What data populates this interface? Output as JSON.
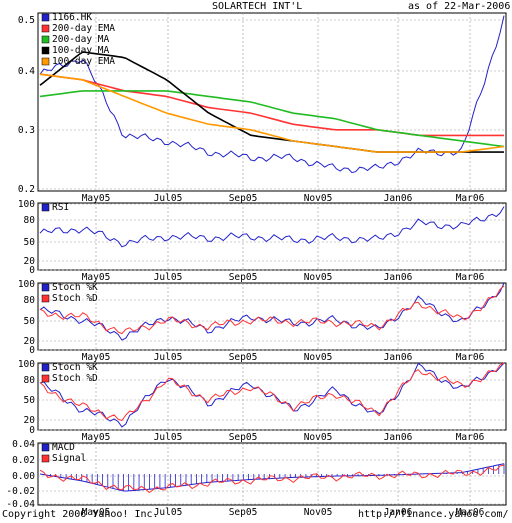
{
  "header": {
    "title": "SOLARTECH INT'L",
    "as_of": "as of 22-Mar-2006"
  },
  "footer": {
    "copyright": "Copyright 2006 Yahoo! Inc.",
    "url": "http://finance.yahoo.com/"
  },
  "colors": {
    "price": "#2222cc",
    "ema200": "#ff3333",
    "ma200": "#22bb22",
    "ma100": "#000000",
    "ema100": "#ff9900",
    "indicator": "#2222cc",
    "signal": "#ff3333",
    "grid": "#999999"
  },
  "chart_data": [
    {
      "type": "line",
      "panel": "price",
      "x_ticks": [
        "May05",
        "Jul05",
        "Sep05",
        "Nov05",
        "Jan06",
        "Mar06"
      ],
      "y_ticks": [
        "0.5",
        "0.4",
        "0.3",
        "0.2"
      ],
      "ylim": [
        0.19,
        0.51
      ],
      "x": [
        "2005-04",
        "2005-05",
        "2005-06",
        "2005-07",
        "2005-08",
        "2005-09",
        "2005-10",
        "2005-11",
        "2005-12",
        "2006-01",
        "2006-02",
        "2006-03-22"
      ],
      "series": [
        {
          "name": "1166.HK",
          "values": [
            0.4,
            0.43,
            0.29,
            0.28,
            0.26,
            0.25,
            0.25,
            0.23,
            0.23,
            0.26,
            0.26,
            0.5
          ]
        },
        {
          "name": "200-day EMA",
          "values": [
            0.4,
            0.39,
            0.37,
            0.36,
            0.34,
            0.33,
            0.31,
            0.3,
            0.3,
            0.29,
            0.29,
            0.29
          ]
        },
        {
          "name": "200-day MA",
          "values": [
            0.36,
            0.37,
            0.37,
            0.37,
            0.36,
            0.35,
            0.33,
            0.32,
            0.3,
            0.29,
            0.28,
            0.27
          ]
        },
        {
          "name": "100-day MA",
          "values": [
            0.38,
            0.44,
            0.43,
            0.39,
            0.33,
            0.29,
            0.28,
            0.27,
            0.26,
            0.26,
            0.26,
            0.26
          ]
        },
        {
          "name": "100-day EMA",
          "values": [
            0.4,
            0.39,
            0.36,
            0.33,
            0.31,
            0.3,
            0.28,
            0.27,
            0.26,
            0.26,
            0.26,
            0.27
          ]
        }
      ]
    },
    {
      "type": "line",
      "panel": "rsi",
      "y_ticks": [
        "100",
        "80",
        "50",
        "20",
        "0"
      ],
      "ylim": [
        0,
        100
      ],
      "x_ticks": [
        "May05",
        "Jul05",
        "Sep05",
        "Nov05",
        "Jan06",
        "Mar06"
      ],
      "x": [
        "2005-04",
        "2005-05",
        "2005-06",
        "2005-07",
        "2005-08",
        "2005-09",
        "2005-10",
        "2005-11",
        "2005-12",
        "2006-01",
        "2006-02",
        "2006-03-22"
      ],
      "series": [
        {
          "name": "RSI",
          "values": [
            55,
            62,
            40,
            50,
            48,
            50,
            45,
            48,
            45,
            70,
            65,
            90
          ]
        }
      ]
    },
    {
      "type": "line",
      "panel": "stoch1",
      "y_ticks": [
        "100",
        "80",
        "50",
        "20",
        "0"
      ],
      "ylim": [
        0,
        100
      ],
      "x_ticks": [
        "May05",
        "Jul05",
        "Sep05",
        "Nov05",
        "Jan06",
        "Mar06"
      ],
      "x": [
        "2005-04",
        "2005-05",
        "2005-06",
        "2005-07",
        "2005-08",
        "2005-09",
        "2005-10",
        "2005-11",
        "2005-12",
        "2006-01",
        "2006-02",
        "2006-03-22"
      ],
      "series": [
        {
          "name": "Stoch %K",
          "values": [
            60,
            45,
            20,
            50,
            30,
            50,
            40,
            45,
            30,
            75,
            40,
            95
          ]
        },
        {
          "name": "Stoch %D",
          "values": [
            55,
            50,
            25,
            45,
            35,
            45,
            42,
            42,
            35,
            70,
            45,
            90
          ]
        }
      ]
    },
    {
      "type": "line",
      "panel": "stoch2",
      "y_ticks": [
        "100",
        "80",
        "50",
        "20",
        "0"
      ],
      "ylim": [
        0,
        100
      ],
      "x_ticks": [
        "May05",
        "Jul05",
        "Sep05",
        "Nov05",
        "Jan06",
        "Mar06"
      ],
      "x": [
        "2005-04",
        "2005-05",
        "2005-06",
        "2005-07",
        "2005-08",
        "2005-09",
        "2005-10",
        "2005-11",
        "2005-12",
        "2006-01",
        "2006-02",
        "2006-03-22"
      ],
      "series": [
        {
          "name": "Stoch %K",
          "values": [
            70,
            30,
            10,
            80,
            40,
            70,
            30,
            60,
            20,
            95,
            60,
            100
          ]
        },
        {
          "name": "Stoch %D",
          "values": [
            65,
            35,
            15,
            75,
            45,
            65,
            35,
            55,
            25,
            90,
            65,
            95
          ]
        }
      ]
    },
    {
      "type": "line",
      "panel": "macd",
      "y_ticks": [
        "0.04",
        "0.02",
        "0.00",
        "-0.02",
        "-0.04"
      ],
      "ylim": [
        -0.045,
        0.045
      ],
      "x_ticks": [
        "May05",
        "Jul05",
        "Sep05",
        "Nov05",
        "Jan06",
        "Mar06"
      ],
      "x": [
        "2005-04",
        "2005-05",
        "2005-06",
        "2005-07",
        "2005-08",
        "2005-09",
        "2005-10",
        "2005-11",
        "2005-12",
        "2006-01",
        "2006-02",
        "2006-03-22"
      ],
      "series": [
        {
          "name": "MACD",
          "values": [
            0.0,
            -0.01,
            -0.025,
            -0.02,
            -0.012,
            -0.008,
            -0.005,
            -0.003,
            -0.002,
            0.0,
            0.002,
            0.015
          ]
        },
        {
          "name": "Signal",
          "values": [
            0.0,
            -0.008,
            -0.022,
            -0.02,
            -0.013,
            -0.009,
            -0.006,
            -0.004,
            -0.002,
            -0.001,
            0.001,
            0.008
          ]
        }
      ]
    }
  ]
}
